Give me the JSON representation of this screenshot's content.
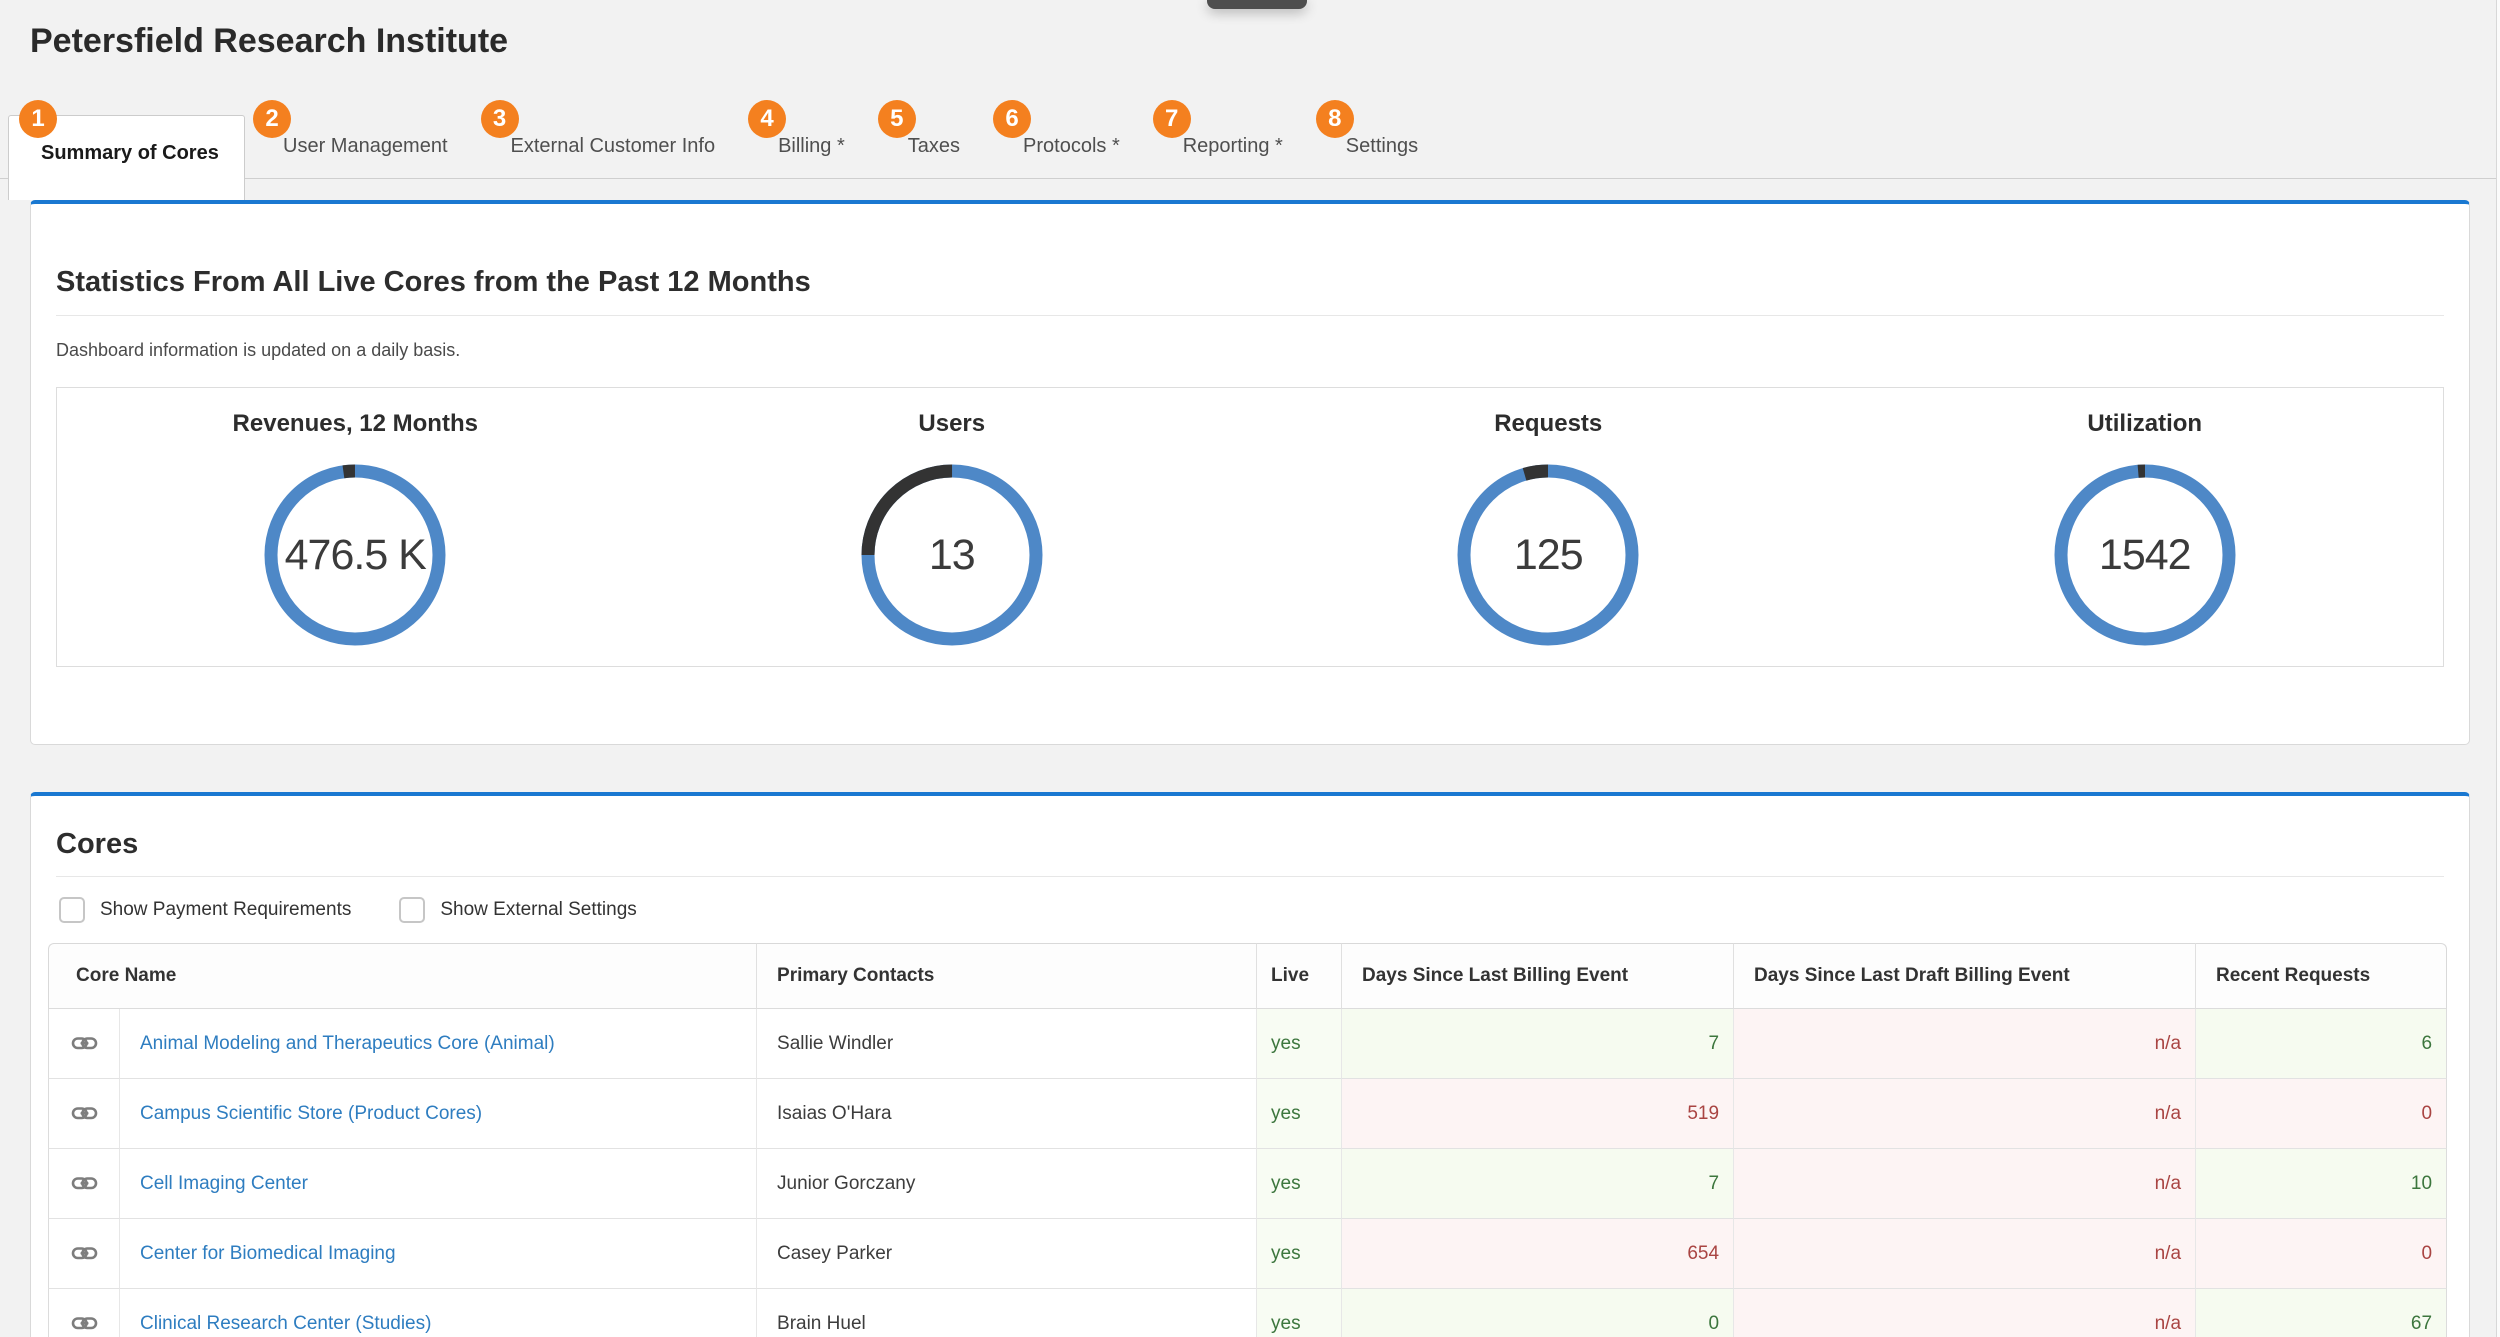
{
  "page": {
    "title": "Petersfield Research Institute"
  },
  "tabs": [
    {
      "num": "1",
      "label": "Summary of Cores",
      "active": true
    },
    {
      "num": "2",
      "label": "User Management",
      "active": false
    },
    {
      "num": "3",
      "label": "External Customer Info",
      "active": false
    },
    {
      "num": "4",
      "label": "Billing *",
      "active": false
    },
    {
      "num": "5",
      "label": "Taxes",
      "active": false
    },
    {
      "num": "6",
      "label": "Protocols *",
      "active": false
    },
    {
      "num": "7",
      "label": "Reporting *",
      "active": false
    },
    {
      "num": "8",
      "label": "Settings",
      "active": false
    }
  ],
  "stats_panel": {
    "title": "Statistics From All Live Cores from the Past 12 Months",
    "subtitle": "Dashboard information is updated on a daily basis.",
    "chart_data": {
      "type": "donut-gauges",
      "gauges": [
        {
          "label": "Revenues, 12 Months",
          "value": "476.5 K",
          "dark_fraction": 0.022
        },
        {
          "label": "Users",
          "value": "13",
          "dark_fraction": 0.25
        },
        {
          "label": "Requests",
          "value": "125",
          "dark_fraction": 0.045
        },
        {
          "label": "Utilization",
          "value": "1542",
          "dark_fraction": 0.013
        }
      ],
      "ring_color": "#4e88c7",
      "remainder_color": "#333333"
    }
  },
  "cores_panel": {
    "title": "Cores",
    "checkboxes": [
      {
        "label": "Show Payment Requirements",
        "checked": false
      },
      {
        "label": "Show External Settings",
        "checked": false
      }
    ],
    "table": {
      "columns": [
        "Core Name",
        "Primary Contacts",
        "Live",
        "Days Since Last Billing Event",
        "Days Since Last Draft Billing Event",
        "Recent Requests"
      ],
      "rows": [
        {
          "core_name": "Animal Modeling and Therapeutics Core (Animal)",
          "primary_contact": "Sallie Windler",
          "live": "yes",
          "live_status": "good",
          "days_since_last_billing": "7",
          "days_billing_status": "good",
          "days_since_last_draft": "n/a",
          "draft_status": "bad",
          "recent_requests": "6",
          "requests_status": "good"
        },
        {
          "core_name": "Campus Scientific Store (Product Cores)",
          "primary_contact": "Isaias O'Hara",
          "live": "yes",
          "live_status": "good",
          "days_since_last_billing": "519",
          "days_billing_status": "bad",
          "days_since_last_draft": "n/a",
          "draft_status": "bad",
          "recent_requests": "0",
          "requests_status": "bad"
        },
        {
          "core_name": "Cell Imaging Center",
          "primary_contact": "Junior Gorczany",
          "live": "yes",
          "live_status": "good",
          "days_since_last_billing": "7",
          "days_billing_status": "good",
          "days_since_last_draft": "n/a",
          "draft_status": "bad",
          "recent_requests": "10",
          "requests_status": "good"
        },
        {
          "core_name": "Center for Biomedical Imaging",
          "primary_contact": "Casey Parker",
          "live": "yes",
          "live_status": "good",
          "days_since_last_billing": "654",
          "days_billing_status": "bad",
          "days_since_last_draft": "n/a",
          "draft_status": "bad",
          "recent_requests": "0",
          "requests_status": "bad"
        },
        {
          "core_name": "Clinical Research Center (Studies)",
          "primary_contact": "Brain Huel",
          "live": "yes",
          "live_status": "good",
          "days_since_last_billing": "0",
          "days_billing_status": "good",
          "days_since_last_draft": "n/a",
          "draft_status": "bad",
          "recent_requests": "67",
          "requests_status": "good"
        }
      ]
    }
  },
  "icons": {
    "core_row_icon": "chain-link-icon"
  },
  "colors": {
    "accent_blue": "#1a78d1",
    "gauge_blue": "#4e88c7",
    "gauge_dark": "#333333",
    "badge_orange": "#f4801f",
    "link_blue": "#2e7dc0",
    "status_good_text": "#3c763d",
    "status_good_bg": "#f6fbf0",
    "status_bad_text": "#a94442",
    "status_bad_bg": "#fdf4f4"
  }
}
